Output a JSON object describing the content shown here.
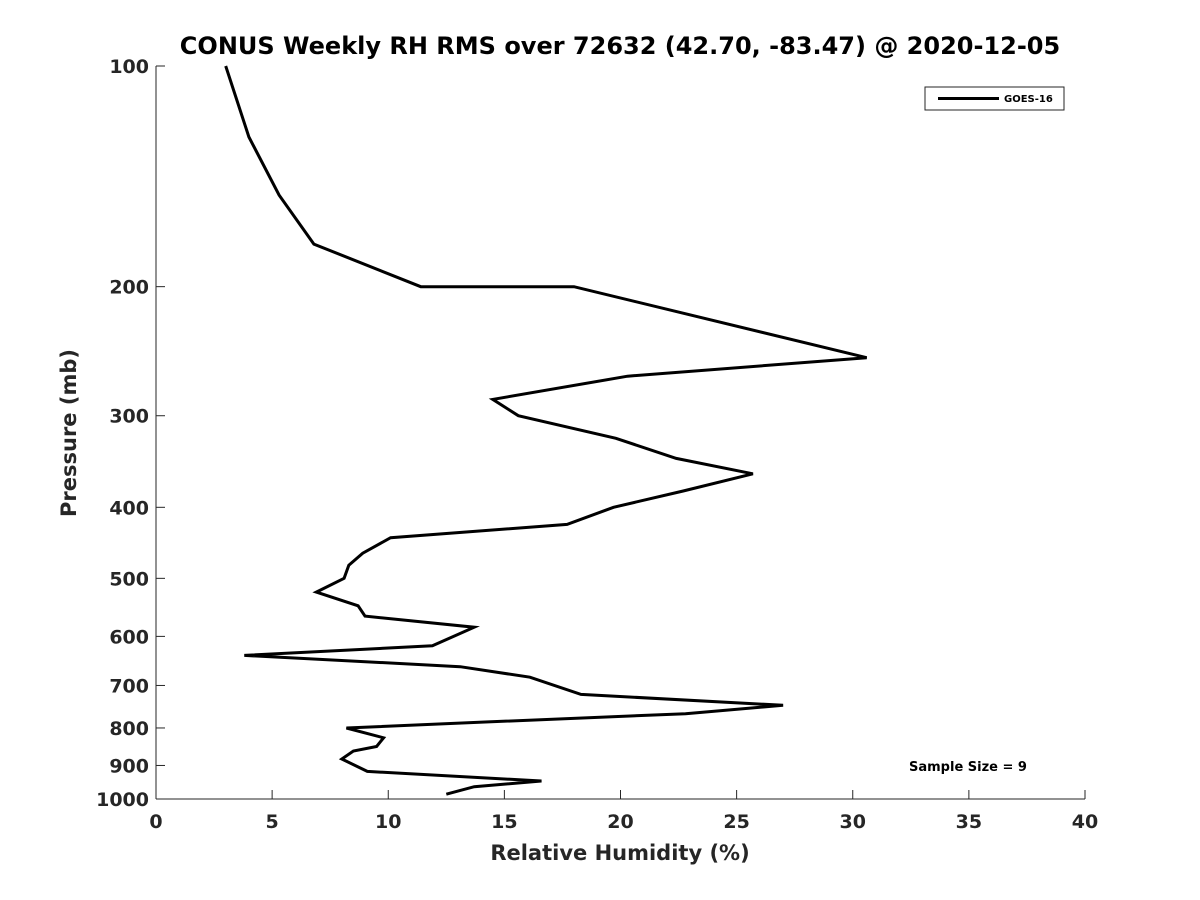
{
  "chart_data": {
    "type": "line",
    "title": "CONUS Weekly RH RMS over 72632 (42.70, -83.47) @ 2020-12-05",
    "xlabel": "Relative Humidity (%)",
    "ylabel": "Pressure (mb)",
    "xlim": [
      0,
      40
    ],
    "ylim": [
      100,
      1000
    ],
    "y_scale": "log",
    "y_reversed": true,
    "grid": false,
    "legend_position": "top-right",
    "x_ticks": [
      0,
      5,
      10,
      15,
      20,
      25,
      30,
      35,
      40
    ],
    "y_ticks": [
      100,
      200,
      300,
      400,
      500,
      600,
      700,
      800,
      900,
      1000
    ],
    "series": [
      {
        "name": "GOES-16",
        "color": "#000000",
        "points": [
          [
            3.0,
            100
          ],
          [
            4.0,
            125
          ],
          [
            5.3,
            150
          ],
          [
            6.8,
            175
          ],
          [
            11.4,
            200
          ],
          [
            18.0,
            200
          ],
          [
            30.6,
            250
          ],
          [
            20.3,
            265
          ],
          [
            14.5,
            285
          ],
          [
            15.6,
            300
          ],
          [
            19.8,
            322
          ],
          [
            22.4,
            343
          ],
          [
            25.7,
            360
          ],
          [
            22.7,
            380
          ],
          [
            19.7,
            400
          ],
          [
            17.7,
            422
          ],
          [
            10.1,
            440
          ],
          [
            8.9,
            462
          ],
          [
            8.3,
            480
          ],
          [
            8.1,
            500
          ],
          [
            6.9,
            522
          ],
          [
            8.7,
            545
          ],
          [
            9.0,
            563
          ],
          [
            13.7,
            583
          ],
          [
            11.9,
            618
          ],
          [
            3.8,
            637
          ],
          [
            13.1,
            660
          ],
          [
            16.1,
            682
          ],
          [
            18.3,
            720
          ],
          [
            27.0,
            745
          ],
          [
            22.8,
            765
          ],
          [
            14.3,
            785
          ],
          [
            8.2,
            800
          ],
          [
            9.8,
            825
          ],
          [
            9.5,
            848
          ],
          [
            8.5,
            860
          ],
          [
            8.0,
            882
          ],
          [
            9.1,
            917
          ],
          [
            16.6,
            945
          ],
          [
            13.7,
            962
          ],
          [
            12.5,
            985
          ]
        ]
      }
    ],
    "annotation": "Sample Size = 9"
  }
}
